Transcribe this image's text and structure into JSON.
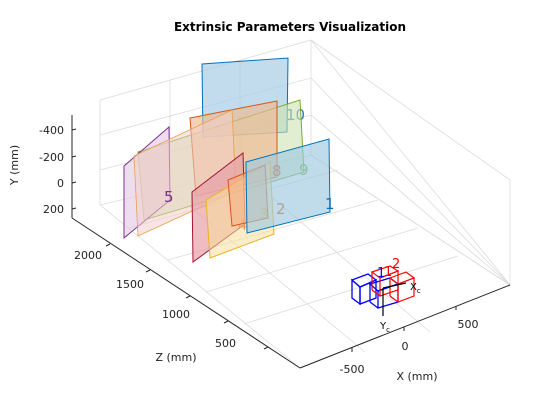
{
  "chart_data": {
    "type": "scatter",
    "title": "Extrinsic Parameters Visualization",
    "xlabel": "X (mm)",
    "ylabel": "Y (mm)",
    "zlabel": "Z (mm)",
    "x_ticks": [
      "-500",
      "0",
      "500"
    ],
    "y_ticks": [
      "-400",
      "-200",
      "0",
      "200"
    ],
    "z_ticks": [
      "500",
      "1000",
      "1500",
      "2000"
    ],
    "grid": true,
    "camera_frame": {
      "x_label": "X",
      "x_sub": "c",
      "y_label": "Y",
      "y_sub": "c",
      "camera_labels": [
        "1",
        "2"
      ]
    },
    "planes": [
      {
        "id": "1",
        "color": "#0072BD",
        "fill": "#9ecae1",
        "label_color": "#0072BD"
      },
      {
        "id": "2",
        "color": "#D95319",
        "fill": "#f4b183",
        "label_color": "#D95319"
      },
      {
        "id": "3",
        "color": "#EDB120",
        "fill": "#f7df9a",
        "label_color": "#EDB120"
      },
      {
        "id": "4",
        "color": "#A2142F",
        "fill": "#e8a0a8",
        "label_color": "#D95319"
      },
      {
        "id": "5",
        "color": "#7E2F8E",
        "fill": "#e2c6e2",
        "label_color": "#7E2F8E"
      },
      {
        "id": "8",
        "color": "#D95319",
        "fill": "#f0b890",
        "label_color": "#D95319"
      },
      {
        "id": "9",
        "color": "#77AC30",
        "fill": "#cfe3b1",
        "label_color": "#77AC30"
      },
      {
        "id": "10",
        "color": "#0072BD",
        "fill": "#a9cde6",
        "label_color": "#0072BD"
      }
    ]
  }
}
